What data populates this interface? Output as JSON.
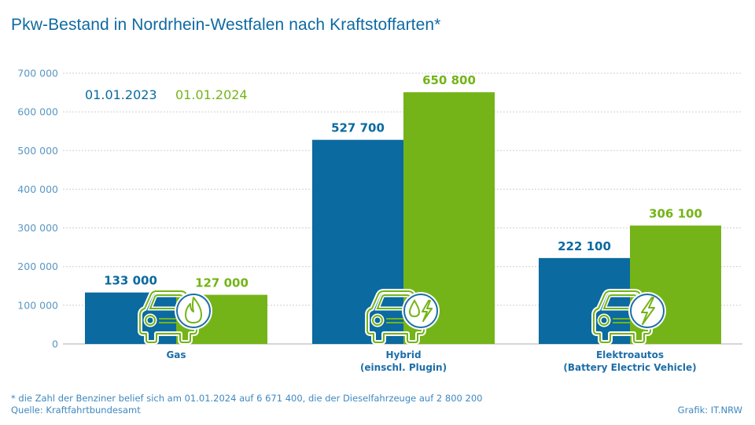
{
  "colors": {
    "y2023": "#0b6a9f",
    "y2024": "#74b418",
    "title": "#0e6aa3",
    "axis": "#5a97c4",
    "grid": "#cfcfcf",
    "icon_circle": "#1d6ea8"
  },
  "chart_data": {
    "type": "bar",
    "title": "Pkw-Bestand in Nordrhein-Westfalen nach Kraftstoffarten*",
    "xlabel": "",
    "ylabel": "",
    "ylim": [
      0,
      700000
    ],
    "yticks": [
      0,
      100000,
      200000,
      300000,
      400000,
      500000,
      600000,
      700000
    ],
    "ytick_labels": [
      "0",
      "100 000",
      "200 000",
      "300 000",
      "400 000",
      "500 000",
      "600 000",
      "700 000"
    ],
    "grid": true,
    "legend_position": "top-left",
    "categories": [
      {
        "label_line1": "Gas",
        "label_line2": "",
        "icon": "car-flame-icon"
      },
      {
        "label_line1": "Hybrid",
        "label_line2": "(einschl. Plugin)",
        "icon": "car-drop-lightning-icon"
      },
      {
        "label_line1": "Elektroautos",
        "label_line2": "(Battery Electric Vehicle)",
        "icon": "car-lightning-icon"
      }
    ],
    "series": [
      {
        "name": "01.01.2023",
        "values": [
          133000,
          527700,
          222100
        ],
        "labels": [
          "133 000",
          "527 700",
          "222 100"
        ]
      },
      {
        "name": "01.01.2024",
        "values": [
          127000,
          650800,
          306100
        ],
        "labels": [
          "127 000",
          "650 800",
          "306 100"
        ]
      }
    ]
  },
  "footnote": {
    "line1": "*  die Zahl der Benziner belief sich am 01.01.2024 auf 6 671 400, die der Dieselfahrzeuge auf 2 800 200",
    "line2": "Quelle: Kraftfahrtbundesamt"
  },
  "credit": "Grafik: IT.NRW"
}
